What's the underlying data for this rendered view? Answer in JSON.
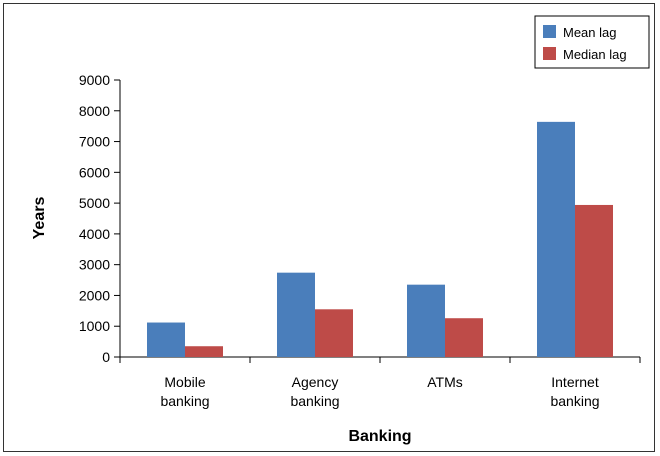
{
  "chart_data": {
    "type": "bar",
    "title": "",
    "xlabel": "Banking",
    "ylabel": "Years",
    "categories": [
      [
        "Mobile",
        "banking"
      ],
      [
        "Agency",
        "banking"
      ],
      [
        "ATMs"
      ],
      [
        "Internet",
        "banking"
      ]
    ],
    "series": [
      {
        "name": "Mean lag",
        "color": "#4a7ebb",
        "values": [
          1120,
          2740,
          2350,
          7640
        ]
      },
      {
        "name": "Median lag",
        "color": "#be4b48",
        "values": [
          350,
          1550,
          1260,
          4940
        ]
      }
    ],
    "ylim": [
      0,
      9000
    ],
    "yticks": [
      0,
      1000,
      2000,
      3000,
      4000,
      5000,
      6000,
      7000,
      8000,
      9000
    ],
    "grid": false,
    "legend_position": "top-right"
  }
}
